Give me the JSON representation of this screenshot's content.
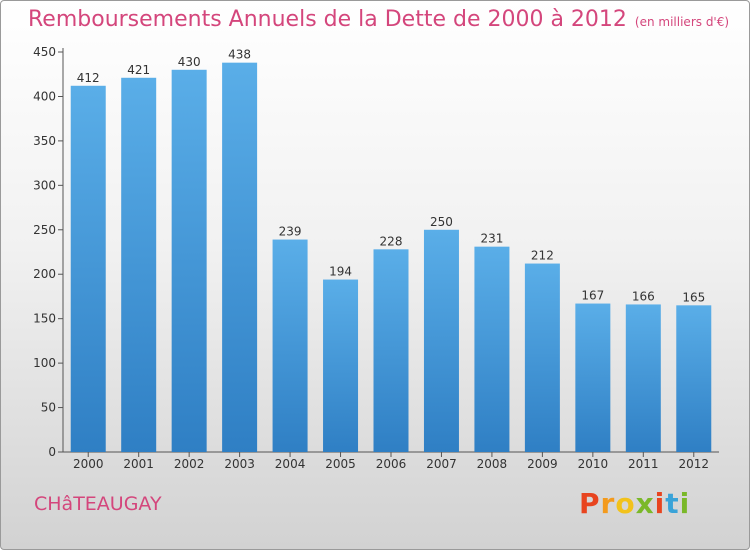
{
  "chart_data": {
    "type": "bar",
    "title": "Remboursements Annuels de la Dette de 2000 à 2012",
    "unit": "(en milliers d'€)",
    "categories": [
      "2000",
      "2001",
      "2002",
      "2003",
      "2004",
      "2005",
      "2006",
      "2007",
      "2008",
      "2009",
      "2010",
      "2011",
      "2012"
    ],
    "values": [
      412,
      421,
      430,
      438,
      239,
      194,
      228,
      250,
      231,
      212,
      167,
      166,
      165
    ],
    "ylim": [
      0,
      450
    ],
    "yticks": [
      0,
      50,
      100,
      150,
      200,
      250,
      300,
      350,
      400,
      450
    ],
    "xlabel": "",
    "ylabel": "",
    "grid": false,
    "legend": "none",
    "bar_color_light": "#5aaee8",
    "bar_color_dark": "#2f7fc4"
  },
  "footer": {
    "commune": "CHâTEAUGAY",
    "logo_text": "Proxiti",
    "logo_colors": [
      "#e8441f",
      "#f39a1c",
      "#f2c21b",
      "#7ab829",
      "#e8441f",
      "#3aa3d8",
      "#7ab829"
    ]
  }
}
